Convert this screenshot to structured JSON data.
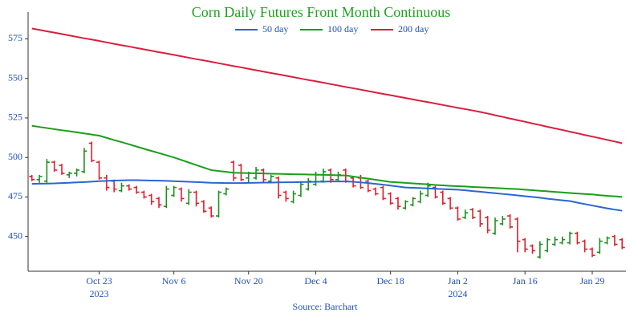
{
  "chart_data": {
    "type": "ohlc",
    "title": "Corn Daily Futures Front Month Continuous",
    "source": "Source: Barchart",
    "x": [
      "2023-10-10",
      "2023-10-11",
      "2023-10-12",
      "2023-10-13",
      "2023-10-16",
      "2023-10-17",
      "2023-10-18",
      "2023-10-19",
      "2023-10-20",
      "2023-10-23",
      "2023-10-24",
      "2023-10-25",
      "2023-10-26",
      "2023-10-27",
      "2023-10-30",
      "2023-10-31",
      "2023-11-01",
      "2023-11-02",
      "2023-11-03",
      "2023-11-06",
      "2023-11-07",
      "2023-11-08",
      "2023-11-09",
      "2023-11-10",
      "2023-11-13",
      "2023-11-14",
      "2023-11-15",
      "2023-11-16",
      "2023-11-17",
      "2023-11-20",
      "2023-11-21",
      "2023-11-22",
      "2023-11-24",
      "2023-11-27",
      "2023-11-28",
      "2023-11-29",
      "2023-11-30",
      "2023-12-01",
      "2023-12-04",
      "2023-12-05",
      "2023-12-06",
      "2023-12-07",
      "2023-12-08",
      "2023-12-11",
      "2023-12-12",
      "2023-12-13",
      "2023-12-14",
      "2023-12-15",
      "2023-12-18",
      "2023-12-19",
      "2023-12-20",
      "2023-12-21",
      "2023-12-22",
      "2023-12-26",
      "2023-12-27",
      "2023-12-28",
      "2023-12-29",
      "2024-01-02",
      "2024-01-03",
      "2024-01-04",
      "2024-01-05",
      "2024-01-08",
      "2024-01-09",
      "2024-01-10",
      "2024-01-11",
      "2024-01-12",
      "2024-01-16",
      "2024-01-17",
      "2024-01-18",
      "2024-01-19",
      "2024-01-22",
      "2024-01-23",
      "2024-01-24",
      "2024-01-25",
      "2024-01-26",
      "2024-01-29",
      "2024-01-30",
      "2024-01-31",
      "2024-02-01",
      "2024-02-02"
    ],
    "open": [
      488,
      486,
      485,
      497,
      495,
      489,
      490,
      491,
      509,
      497,
      487,
      485,
      479,
      482,
      481,
      478,
      476,
      474,
      469,
      476,
      480,
      471,
      478,
      472,
      468,
      463,
      477,
      497,
      495,
      487,
      487,
      492,
      485,
      487,
      478,
      472,
      476,
      480,
      483,
      485,
      492,
      486,
      492,
      487,
      487,
      485,
      480,
      481,
      477,
      474,
      468,
      470,
      472,
      476,
      481,
      478,
      474,
      468,
      462,
      467,
      466,
      462,
      452,
      458,
      463,
      461,
      448,
      444,
      437,
      441,
      445,
      446,
      446,
      452,
      447,
      442,
      440,
      446,
      450,
      448
    ],
    "high": [
      489,
      489,
      499,
      498,
      496,
      491,
      493,
      506,
      510,
      498,
      489,
      486,
      484,
      483,
      482,
      479,
      477,
      475,
      482,
      482,
      481,
      480,
      479,
      473,
      469,
      479,
      481,
      498,
      496,
      491,
      494,
      493,
      489,
      488,
      479,
      479,
      485,
      487,
      491,
      493,
      493,
      491,
      493,
      488,
      489,
      486,
      481,
      482,
      478,
      475,
      473,
      475,
      479,
      484,
      482,
      479,
      475,
      469,
      467,
      468,
      467,
      463,
      462,
      463,
      464,
      462,
      449,
      445,
      447,
      449,
      450,
      450,
      453,
      453,
      448,
      443,
      449,
      450,
      451,
      449
    ],
    "low": [
      485,
      484,
      484,
      491,
      489,
      487,
      488,
      490,
      497,
      486,
      479,
      478,
      478,
      479,
      477,
      474,
      470,
      468,
      468,
      475,
      472,
      470,
      469,
      465,
      462,
      462,
      476,
      485,
      485,
      484,
      486,
      484,
      484,
      474,
      472,
      471,
      475,
      479,
      482,
      484,
      484,
      485,
      484,
      481,
      480,
      478,
      476,
      473,
      470,
      467,
      467,
      469,
      471,
      475,
      474,
      470,
      467,
      460,
      461,
      461,
      456,
      452,
      451,
      457,
      455,
      440,
      440,
      439,
      436,
      440,
      444,
      445,
      445,
      445,
      440,
      437,
      439,
      445,
      444,
      442
    ],
    "close": [
      486,
      488,
      497,
      492,
      490,
      490,
      492,
      504,
      498,
      487,
      481,
      480,
      482,
      480,
      478,
      475,
      472,
      470,
      480,
      481,
      474,
      478,
      471,
      466,
      463,
      478,
      480,
      487,
      486,
      490,
      492,
      486,
      488,
      476,
      474,
      477,
      483,
      485,
      489,
      491,
      486,
      489,
      485,
      482,
      481,
      479,
      477,
      474,
      471,
      469,
      472,
      474,
      477,
      482,
      475,
      471,
      468,
      461,
      465,
      462,
      458,
      454,
      460,
      461,
      456,
      447,
      442,
      441,
      445,
      448,
      448,
      448,
      452,
      446,
      442,
      438,
      447,
      449,
      445,
      443
    ],
    "up_color": "#1f8f1f",
    "down_color": "#e0202c",
    "series": [
      {
        "name": "50 day",
        "color": "#2a66d0",
        "values": [
          483.3,
          483.4,
          483.5,
          483.6,
          483.8,
          484.0,
          484.2,
          484.4,
          484.7,
          485.0,
          485.2,
          485.4,
          485.5,
          485.6,
          485.6,
          485.5,
          485.4,
          485.3,
          485.2,
          485.0,
          484.8,
          484.6,
          484.4,
          484.2,
          484.0,
          483.9,
          483.8,
          483.8,
          483.8,
          483.9,
          484.0,
          484.1,
          484.1,
          484.2,
          484.3,
          484.3,
          484.4,
          484.5,
          484.6,
          484.7,
          484.8,
          484.8,
          484.8,
          484.6,
          484.2,
          483.8,
          483.3,
          482.8,
          482.2,
          481.6,
          481.0,
          480.8,
          480.6,
          480.4,
          480.2,
          480.0,
          479.8,
          479.6,
          479.2,
          478.7,
          478.3,
          477.8,
          477.4,
          476.9,
          476.5,
          476.0,
          475.5,
          475.0,
          474.5,
          473.9,
          473.4,
          472.9,
          472.4,
          471.4,
          470.5,
          469.6,
          468.7,
          467.8,
          467.0,
          466.3
        ]
      },
      {
        "name": "100 day",
        "color": "#1a9e1a",
        "values": [
          520.0,
          519.3,
          518.6,
          517.9,
          517.2,
          516.6,
          515.9,
          515.2,
          514.5,
          513.8,
          512.4,
          511.0,
          509.7,
          508.3,
          506.9,
          505.5,
          504.1,
          502.8,
          501.4,
          500.0,
          498.4,
          496.8,
          495.2,
          493.6,
          492.0,
          491.4,
          490.9,
          490.3,
          490.2,
          490.1,
          490.0,
          489.9,
          489.7,
          489.6,
          489.5,
          489.4,
          489.3,
          489.2,
          489.1,
          489.0,
          488.9,
          488.7,
          488.6,
          487.9,
          487.2,
          486.6,
          485.9,
          485.2,
          484.5,
          484.2,
          483.9,
          483.6,
          483.3,
          483.0,
          482.6,
          482.3,
          482.0,
          481.8,
          481.6,
          481.3,
          481.1,
          480.9,
          480.7,
          480.4,
          480.2,
          480.0,
          479.6,
          479.3,
          478.9,
          478.6,
          478.2,
          477.9,
          477.5,
          477.2,
          476.9,
          476.6,
          476.1,
          475.7,
          475.4,
          475.0
        ]
      },
      {
        "name": "200 day",
        "color": "#d8203e",
        "values": [
          581.6,
          580.7,
          579.8,
          579.0,
          578.1,
          577.2,
          576.3,
          575.4,
          574.6,
          573.7,
          572.8,
          571.9,
          571.0,
          570.2,
          569.3,
          568.4,
          567.5,
          566.6,
          565.8,
          564.9,
          564.0,
          563.1,
          562.2,
          561.4,
          560.5,
          559.6,
          558.7,
          557.8,
          557.0,
          556.1,
          555.2,
          554.3,
          553.4,
          552.6,
          551.7,
          550.8,
          549.9,
          549.0,
          548.2,
          547.3,
          546.4,
          545.5,
          544.6,
          543.8,
          542.9,
          542.0,
          541.1,
          540.2,
          539.4,
          538.5,
          537.6,
          536.7,
          535.8,
          535.0,
          534.1,
          533.2,
          532.3,
          531.4,
          530.6,
          529.7,
          528.8,
          527.8,
          526.7,
          525.7,
          524.6,
          523.6,
          522.6,
          521.5,
          520.5,
          519.4,
          518.4,
          517.4,
          516.3,
          515.3,
          514.2,
          513.2,
          512.2,
          511.1,
          510.1,
          509.0
        ]
      }
    ],
    "ylim": [
      428,
      592
    ],
    "yticks": [
      450,
      475,
      500,
      525,
      550,
      575
    ],
    "xticks": [
      {
        "value": "2023-10-23",
        "label": "Oct 23"
      },
      {
        "value": "2023-11-06",
        "label": "Nov 6"
      },
      {
        "value": "2023-11-20",
        "label": "Nov 20"
      },
      {
        "value": "2023-12-04",
        "label": "Dec 4"
      },
      {
        "value": "2023-12-18",
        "label": "Dec 18"
      },
      {
        "value": "2024-01-02",
        "label": "Jan 2"
      },
      {
        "value": "2024-01-16",
        "label": "Jan 16"
      },
      {
        "value": "2024-01-29",
        "label": "Jan 29"
      }
    ],
    "xtick_years": [
      {
        "value": "2023-10-23",
        "label": "2023"
      },
      {
        "value": "2024-01-02",
        "label": "2024"
      }
    ],
    "grid": false
  }
}
